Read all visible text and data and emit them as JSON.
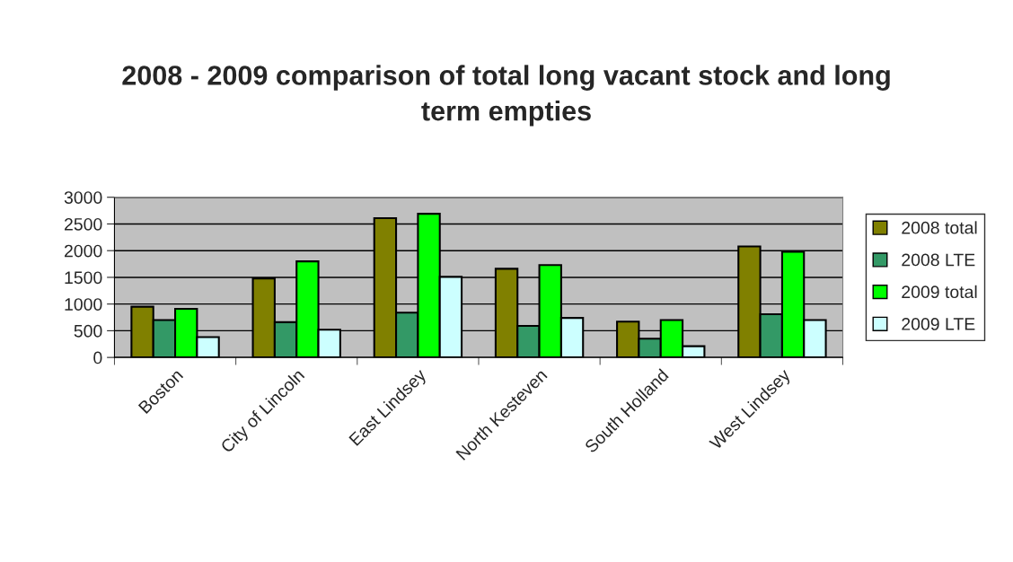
{
  "chart_data": {
    "type": "bar",
    "title": "2008 - 2009 comparison of total long vacant stock and long term empties",
    "categories": [
      "Boston",
      "City of Lincoln",
      "East Lindsey",
      "North Kesteven",
      "South Holland",
      "West Lindsey"
    ],
    "series": [
      {
        "name": "2008 total",
        "color": "#808000",
        "values": [
          950,
          1480,
          2610,
          1660,
          670,
          2080
        ]
      },
      {
        "name": "2008 LTE",
        "color": "#339966",
        "values": [
          700,
          660,
          840,
          590,
          350,
          810
        ]
      },
      {
        "name": "2009 total",
        "color": "#00ff00",
        "values": [
          910,
          1800,
          2690,
          1730,
          700,
          1980
        ]
      },
      {
        "name": "2009 LTE",
        "color": "#ccffff",
        "values": [
          380,
          520,
          1510,
          740,
          210,
          700
        ]
      }
    ],
    "ylim": [
      0,
      3000
    ],
    "yticks": [
      0,
      500,
      1000,
      1500,
      2000,
      2500,
      3000
    ],
    "grid": "y",
    "legend": "right"
  }
}
